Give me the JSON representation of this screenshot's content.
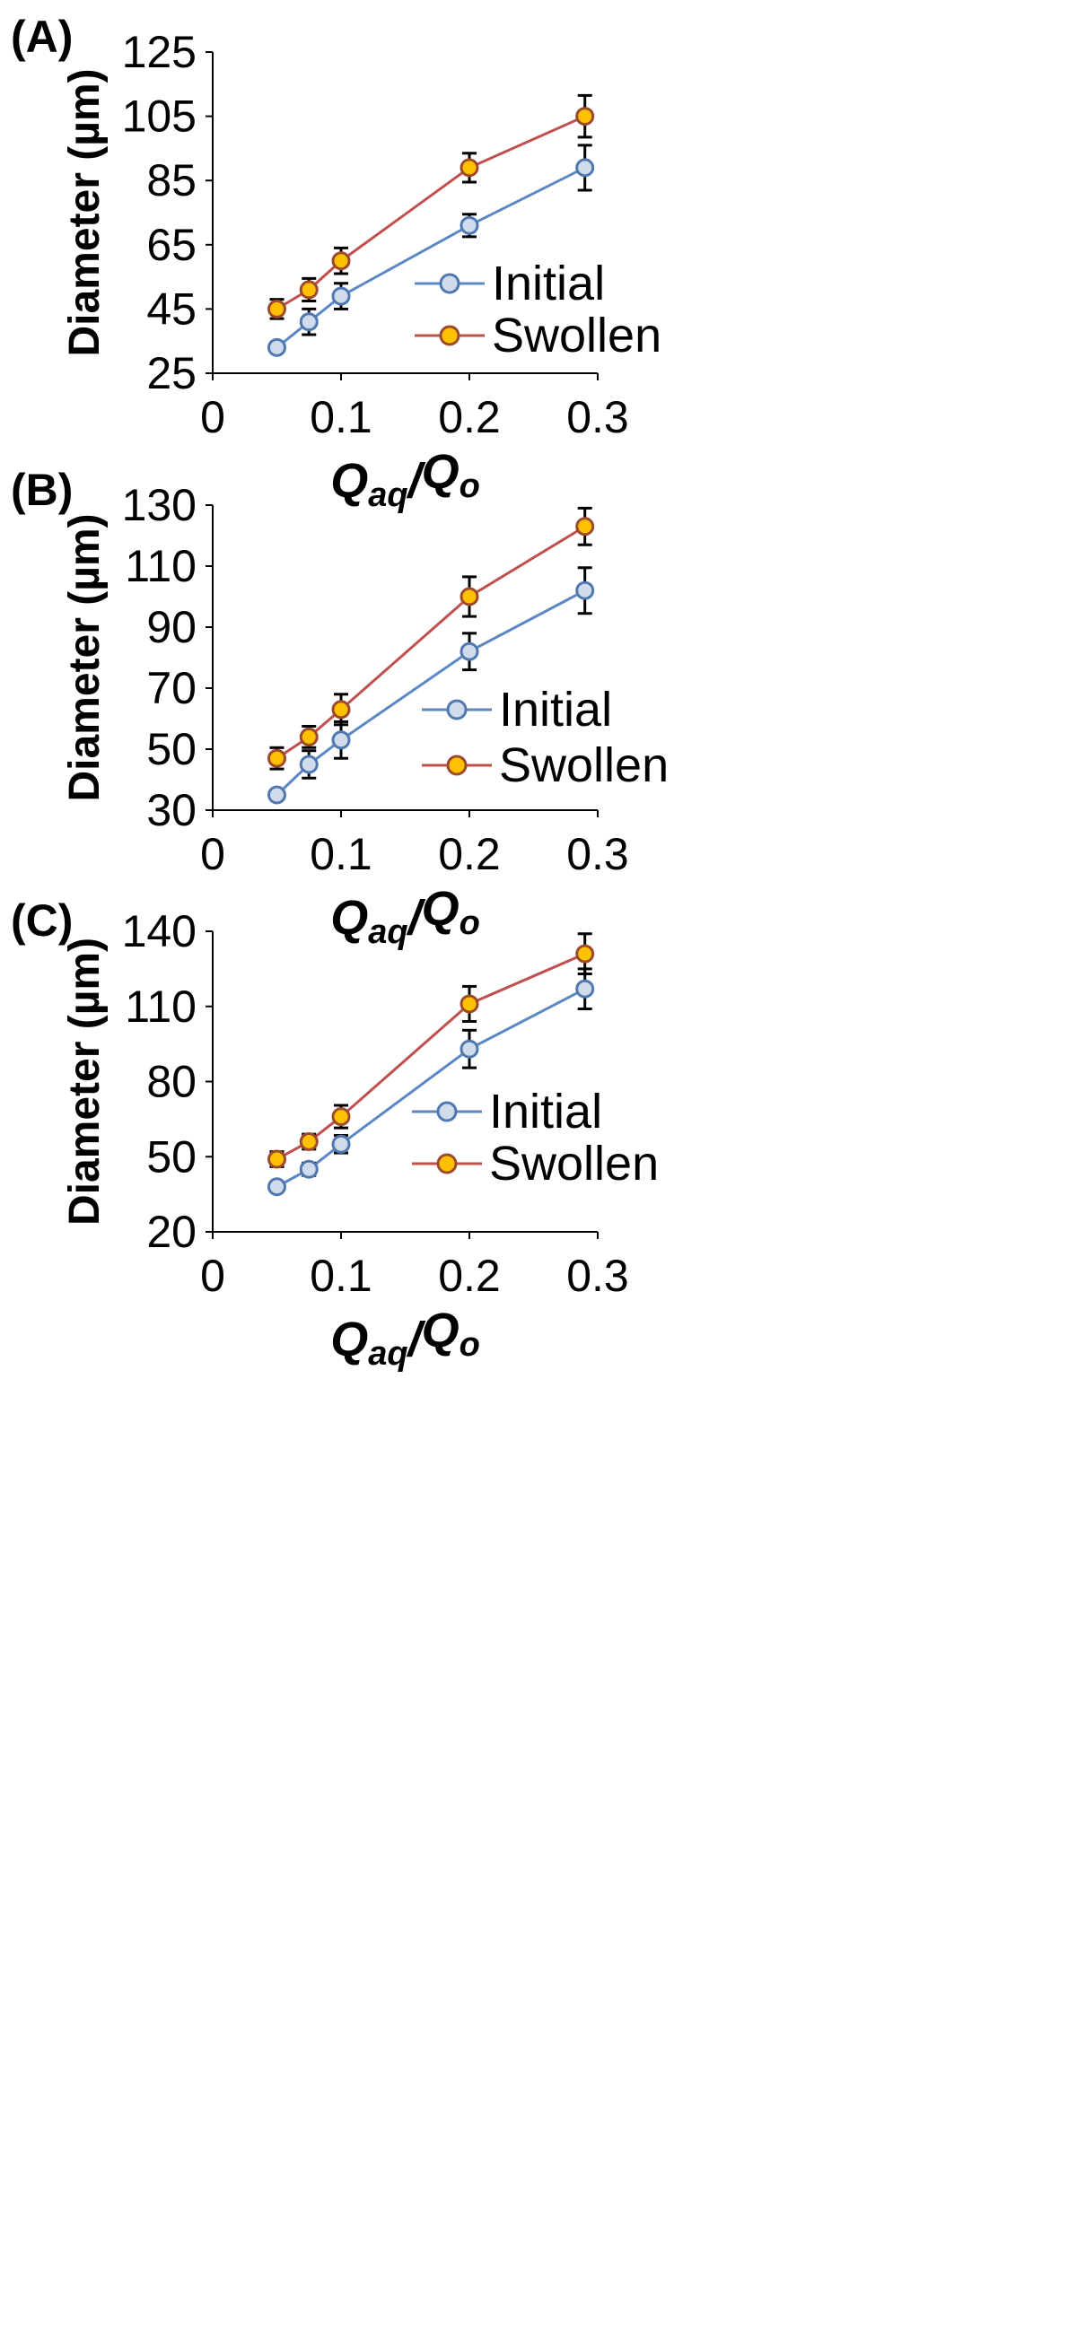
{
  "chart_data": [
    {
      "panel_label": "(A)",
      "type": "line",
      "xlabel": {
        "main": "Q",
        "sub": "aq",
        "slash": "/",
        "main2": "Q",
        "sub2": "o"
      },
      "ylabel": "Diameter (µm)",
      "xlim": [
        0,
        0.3
      ],
      "ylim": [
        25,
        125
      ],
      "xticks": [
        0,
        0.1,
        0.2,
        0.3
      ],
      "xtick_labels": [
        "0",
        "0.1",
        "0.2",
        "0.3"
      ],
      "yticks": [
        25,
        45,
        65,
        85,
        105,
        125
      ],
      "ytick_labels": [
        "25",
        "45",
        "65",
        "85",
        "105",
        "125"
      ],
      "grid": false,
      "legend_position": "center-right",
      "x": [
        0.05,
        0.075,
        0.1,
        0.2,
        0.29
      ],
      "series": [
        {
          "name": "Initial",
          "values": [
            33,
            41,
            49,
            71,
            89
          ],
          "errors": [
            1.5,
            4,
            4,
            3.5,
            7
          ],
          "line_color": "#5b87c4",
          "marker_fill": "#d0dcec",
          "marker_edge": "#4f78b0"
        },
        {
          "name": "Swollen",
          "values": [
            45,
            51,
            60,
            89,
            105
          ],
          "errors": [
            3,
            3.5,
            4,
            4.5,
            6.5
          ],
          "line_color": "#c0504d",
          "marker_fill": "#ffc000",
          "marker_edge": "#9c4a2e"
        }
      ]
    },
    {
      "panel_label": "(B)",
      "type": "line",
      "xlabel": {
        "main": "Q",
        "sub": "aq",
        "slash": "/",
        "main2": "Q",
        "sub2": "o"
      },
      "ylabel": "Diameter (µm)",
      "xlim": [
        0,
        0.3
      ],
      "ylim": [
        30,
        130
      ],
      "xticks": [
        0,
        0.1,
        0.2,
        0.3
      ],
      "xtick_labels": [
        "0",
        "0.1",
        "0.2",
        "0.3"
      ],
      "yticks": [
        30,
        50,
        70,
        90,
        110,
        130
      ],
      "ytick_labels": [
        "30",
        "50",
        "70",
        "90",
        "110",
        "130"
      ],
      "grid": false,
      "legend_position": "center-right",
      "x": [
        0.05,
        0.075,
        0.1,
        0.2,
        0.29
      ],
      "series": [
        {
          "name": "Initial",
          "values": [
            35,
            45,
            53,
            82,
            102
          ],
          "errors": [
            1.5,
            4.5,
            6,
            6,
            7.5
          ],
          "line_color": "#5b87c4",
          "marker_fill": "#d0dcec",
          "marker_edge": "#4f78b0"
        },
        {
          "name": "Swollen",
          "values": [
            47,
            54,
            63,
            100,
            123
          ],
          "errors": [
            3.5,
            3.5,
            5,
            6.5,
            6
          ],
          "line_color": "#c0504d",
          "marker_fill": "#ffc000",
          "marker_edge": "#9c4a2e"
        }
      ]
    },
    {
      "panel_label": "(C)",
      "type": "line",
      "xlabel": {
        "main": "Q",
        "sub": "aq",
        "slash": "/",
        "main2": "Q",
        "sub2": "o"
      },
      "ylabel": "Diameter (µm)",
      "xlim": [
        0,
        0.3
      ],
      "ylim": [
        20,
        140
      ],
      "xticks": [
        0,
        0.1,
        0.2,
        0.3
      ],
      "xtick_labels": [
        "0",
        "0.1",
        "0.2",
        "0.3"
      ],
      "yticks": [
        20,
        50,
        80,
        110,
        140
      ],
      "ytick_labels": [
        "20",
        "50",
        "80",
        "110",
        "140"
      ],
      "grid": false,
      "legend_position": "center-right",
      "x": [
        0.05,
        0.075,
        0.1,
        0.2,
        0.29
      ],
      "series": [
        {
          "name": "Initial",
          "values": [
            38,
            45,
            55,
            93,
            117
          ],
          "errors": [
            1.5,
            2.5,
            3.5,
            7.5,
            8
          ],
          "line_color": "#5b87c4",
          "marker_fill": "#d0dcec",
          "marker_edge": "#4f78b0"
        },
        {
          "name": "Swollen",
          "values": [
            49,
            56,
            66,
            111,
            131
          ],
          "errors": [
            3,
            3,
            4.5,
            7,
            8
          ],
          "line_color": "#c0504d",
          "marker_fill": "#ffc000",
          "marker_edge": "#9c4a2e"
        }
      ]
    }
  ]
}
